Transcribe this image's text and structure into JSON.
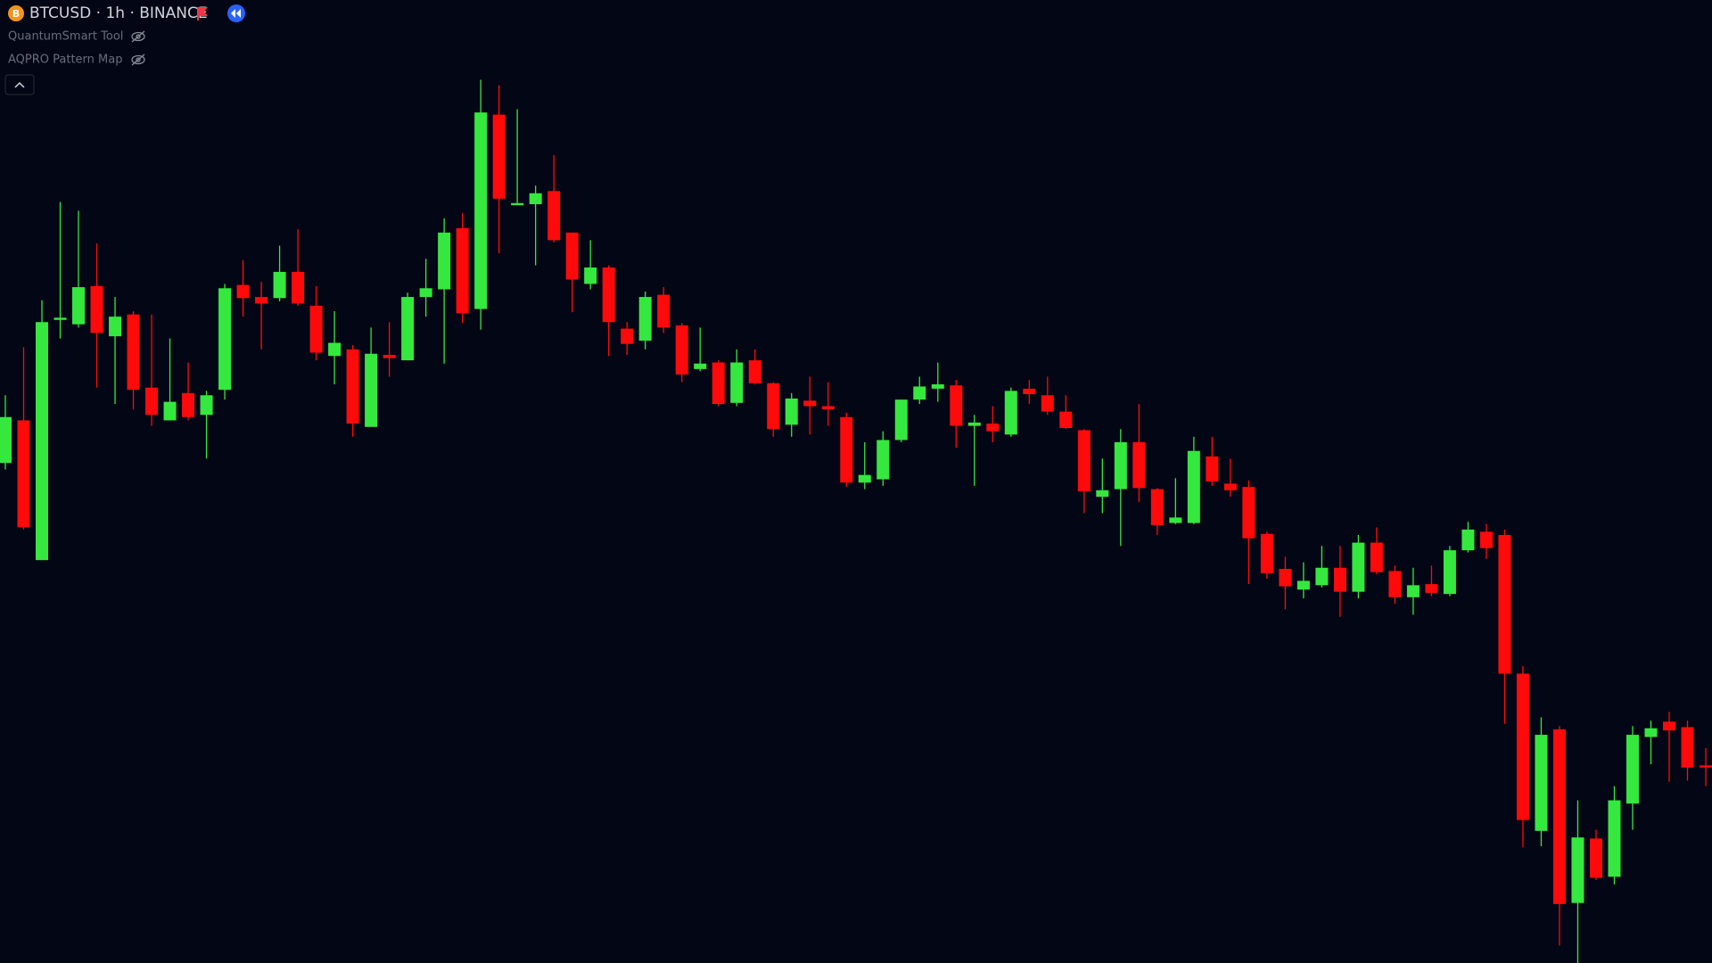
{
  "header": {
    "symbol": "BTCUSD · 1h · BINANCE",
    "indicators": [
      "QuantumSmart Tool",
      "AQPRO Pattern Map"
    ]
  },
  "chart_data": {
    "type": "candlestick",
    "ylim": [
      0,
      882
    ],
    "up_color": "#35e83e",
    "down_color": "#ff0a0a",
    "open": [
      458,
      497,
      369,
      589,
      585,
      620,
      574,
      594,
      527,
      497,
      522,
      502,
      525,
      621,
      610,
      609,
      633,
      602,
      556,
      562,
      491,
      557,
      552,
      610,
      617,
      673,
      599,
      777,
      694,
      695,
      707,
      669,
      622,
      637,
      581,
      570,
      612,
      584,
      544,
      550,
      513,
      552,
      531,
      493,
      515,
      510,
      500,
      440,
      443,
      479,
      516,
      526,
      529,
      492,
      494,
      484,
      526,
      520,
      505,
      488,
      427,
      434,
      477,
      434,
      403,
      403,
      464,
      439,
      436,
      393,
      361,
      342,
      346,
      362,
      340,
      385,
      359,
      335,
      347,
      338,
      378,
      395,
      392,
      265,
      121,
      214,
      55,
      114,
      79,
      146,
      207,
      221,
      216,
      181
    ],
    "high": [
      520,
      564,
      607,
      697,
      689,
      659,
      610,
      597,
      594,
      572,
      550,
      524,
      622,
      644,
      624,
      657,
      672,
      620,
      597,
      566,
      582,
      587,
      614,
      645,
      682,
      687,
      809,
      804,
      782,
      712,
      740,
      669,
      662,
      639,
      587,
      615,
      619,
      586,
      582,
      552,
      562,
      562,
      532,
      522,
      537,
      532,
      504,
      477,
      487,
      516,
      537,
      550,
      534,
      502,
      510,
      527,
      534,
      537,
      520,
      489,
      462,
      489,
      512,
      435,
      444,
      482,
      482,
      462,
      442,
      395,
      372,
      367,
      382,
      382,
      392,
      399,
      364,
      362,
      364,
      382,
      404,
      402,
      397,
      272,
      225,
      217,
      149,
      122,
      162,
      217,
      222,
      230,
      222,
      197
    ],
    "low": [
      452,
      397,
      369,
      572,
      582,
      527,
      512,
      507,
      492,
      497,
      497,
      462,
      516,
      592,
      562,
      606,
      602,
      552,
      530,
      482,
      491,
      537,
      552,
      592,
      549,
      586,
      580,
      650,
      694,
      639,
      660,
      596,
      617,
      556,
      557,
      562,
      577,
      532,
      542,
      510,
      510,
      530,
      482,
      482,
      484,
      492,
      436,
      434,
      437,
      477,
      512,
      514,
      472,
      437,
      477,
      482,
      512,
      502,
      489,
      412,
      412,
      382,
      422,
      392,
      402,
      402,
      437,
      427,
      347,
      352,
      324,
      334,
      344,
      317,
      334,
      356,
      329,
      319,
      336,
      336,
      376,
      370,
      219,
      106,
      107,
      16,
      0,
      76,
      72,
      122,
      182,
      166,
      167,
      162
    ],
    "close": [
      500,
      399,
      587,
      591,
      619,
      577,
      592,
      525,
      502,
      514,
      500,
      520,
      618,
      609,
      604,
      633,
      604,
      559,
      568,
      494,
      558,
      554,
      610,
      618,
      669,
      595,
      779,
      700,
      696,
      705,
      662,
      626,
      637,
      587,
      567,
      610,
      582,
      539,
      549,
      512,
      550,
      531,
      489,
      517,
      510,
      507,
      440,
      447,
      479,
      516,
      528,
      530,
      492,
      495,
      487,
      524,
      521,
      505,
      490,
      432,
      433,
      477,
      435,
      401,
      408,
      469,
      441,
      433,
      389,
      357,
      345,
      350,
      362,
      340,
      385,
      358,
      335,
      346,
      339,
      378,
      397,
      380,
      265,
      131,
      209,
      54,
      115,
      78,
      149,
      209,
      215,
      213,
      179,
      179
    ]
  }
}
